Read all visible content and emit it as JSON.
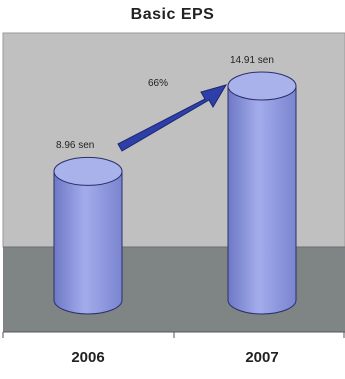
{
  "chart_data": {
    "type": "bar",
    "style": "3d-cylinder",
    "title": "Basic EPS",
    "categories": [
      "2006",
      "2007"
    ],
    "values": [
      8.96,
      14.91
    ],
    "data_labels": [
      "8.96 sen",
      "14.91 sen"
    ],
    "annotation": "66%",
    "xlabel": "",
    "ylabel": "",
    "ylim": [
      0,
      14.91
    ],
    "grid": false,
    "legend": "none",
    "colors": {
      "bar_fill": "#8c97dc",
      "bar_top": "#a9b2ea",
      "arrow": "#2f3fa8",
      "wall": "#c0c0c0",
      "floor": "#7f8585"
    }
  }
}
